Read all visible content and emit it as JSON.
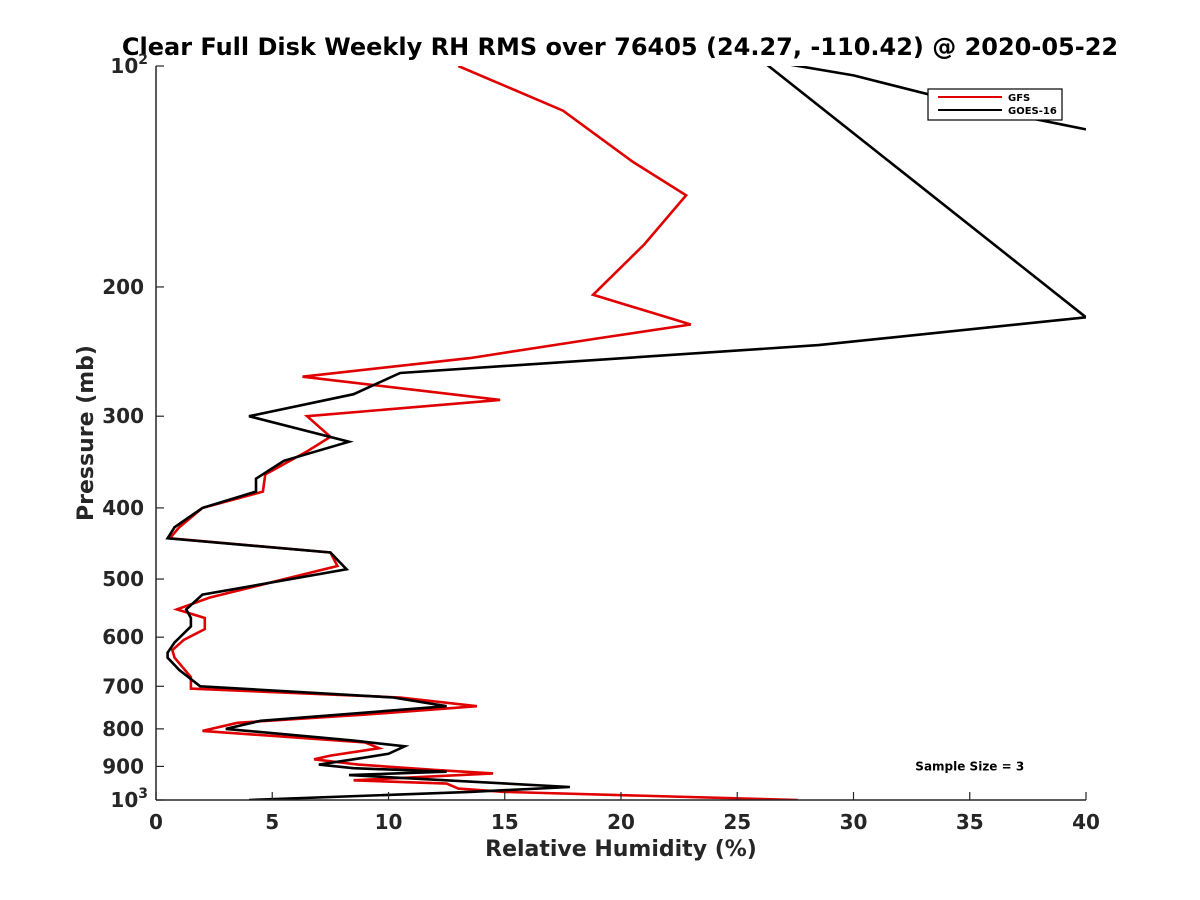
{
  "chart_data": {
    "type": "line",
    "title": "Clear Full Disk Weekly RH RMS over 76405 (24.27, -110.42) @ 2020-05-22",
    "xlabel": "Relative Humidity (%)",
    "ylabel": "Pressure (mb)",
    "xlim": [
      0,
      40
    ],
    "ylim": [
      100,
      1000
    ],
    "yscale": "log",
    "yreversed": true,
    "grid": false,
    "legend_position": "top-right",
    "x_ticks": [
      {
        "value": 0,
        "label": "0"
      },
      {
        "value": 5,
        "label": "5"
      },
      {
        "value": 10,
        "label": "10"
      },
      {
        "value": 15,
        "label": "15"
      },
      {
        "value": 20,
        "label": "20"
      },
      {
        "value": 25,
        "label": "25"
      },
      {
        "value": 30,
        "label": "30"
      },
      {
        "value": 35,
        "label": "35"
      },
      {
        "value": 40,
        "label": "40"
      }
    ],
    "y_ticks": [
      {
        "value": 100,
        "base": "10",
        "exp": "2"
      },
      {
        "value": 200,
        "label": "200"
      },
      {
        "value": 300,
        "label": "300"
      },
      {
        "value": 400,
        "label": "400"
      },
      {
        "value": 500,
        "label": "500"
      },
      {
        "value": 600,
        "label": "600"
      },
      {
        "value": 700,
        "label": "700"
      },
      {
        "value": 800,
        "label": "800"
      },
      {
        "value": 900,
        "label": "900"
      },
      {
        "value": 1000,
        "base": "10",
        "exp": "3"
      }
    ],
    "series": [
      {
        "name": "GFS",
        "color": "#e00000",
        "points": [
          [
            13.0,
            100
          ],
          [
            17.5,
            115
          ],
          [
            20.5,
            135
          ],
          [
            22.8,
            150
          ],
          [
            21.0,
            175
          ],
          [
            18.8,
            205
          ],
          [
            23.0,
            225
          ],
          [
            19.0,
            235
          ],
          [
            13.5,
            250
          ],
          [
            6.3,
            265
          ],
          [
            14.8,
            285
          ],
          [
            6.5,
            300
          ],
          [
            7.5,
            320
          ],
          [
            6.5,
            335
          ],
          [
            4.7,
            360
          ],
          [
            4.6,
            380
          ],
          [
            2.0,
            400
          ],
          [
            1.0,
            425
          ],
          [
            0.6,
            440
          ],
          [
            7.5,
            460
          ],
          [
            7.8,
            480
          ],
          [
            2.3,
            530
          ],
          [
            0.9,
            550
          ],
          [
            2.1,
            565
          ],
          [
            2.1,
            585
          ],
          [
            1.2,
            605
          ],
          [
            0.7,
            625
          ],
          [
            0.8,
            640
          ],
          [
            1.5,
            680
          ],
          [
            1.5,
            705
          ],
          [
            10.5,
            725
          ],
          [
            13.8,
            745
          ],
          [
            9.0,
            765
          ],
          [
            3.5,
            785
          ],
          [
            2.0,
            805
          ],
          [
            9.0,
            835
          ],
          [
            9.6,
            850
          ],
          [
            7.5,
            870
          ],
          [
            6.8,
            880
          ],
          [
            8.7,
            895
          ],
          [
            12.0,
            910
          ],
          [
            14.5,
            920
          ],
          [
            8.5,
            940
          ],
          [
            12.5,
            950
          ],
          [
            13.0,
            965
          ],
          [
            15.0,
            975
          ],
          [
            27.6,
            1000
          ]
        ]
      },
      {
        "name": "GOES-16",
        "color": "#000000",
        "points": [
          [
            40.0,
            122
          ],
          [
            36.0,
            115
          ],
          [
            30.0,
            103
          ],
          [
            26.0,
            98
          ],
          [
            40.0,
            220
          ],
          [
            28.5,
            240
          ],
          [
            10.5,
            262
          ],
          [
            8.5,
            280
          ],
          [
            4.0,
            300
          ],
          [
            8.3,
            325
          ],
          [
            5.5,
            345
          ],
          [
            4.3,
            365
          ],
          [
            4.3,
            380
          ],
          [
            2.0,
            400
          ],
          [
            0.8,
            425
          ],
          [
            0.5,
            440
          ],
          [
            7.5,
            460
          ],
          [
            8.2,
            485
          ],
          [
            2.0,
            525
          ],
          [
            1.3,
            550
          ],
          [
            1.5,
            565
          ],
          [
            1.5,
            580
          ],
          [
            0.8,
            610
          ],
          [
            0.5,
            630
          ],
          [
            0.5,
            640
          ],
          [
            1.0,
            665
          ],
          [
            1.9,
            700
          ],
          [
            10.2,
            725
          ],
          [
            12.5,
            745
          ],
          [
            4.5,
            780
          ],
          [
            3.0,
            800
          ],
          [
            8.5,
            830
          ],
          [
            10.7,
            845
          ],
          [
            10.0,
            865
          ],
          [
            8.5,
            880
          ],
          [
            7.0,
            895
          ],
          [
            8.5,
            905
          ],
          [
            12.5,
            915
          ],
          [
            8.3,
            925
          ],
          [
            17.8,
            960
          ],
          [
            13.5,
            975
          ],
          [
            4.0,
            1000
          ]
        ]
      }
    ],
    "annotations": [
      {
        "text": "Sample Size = 3",
        "x": 35,
        "y": 900
      }
    ]
  }
}
